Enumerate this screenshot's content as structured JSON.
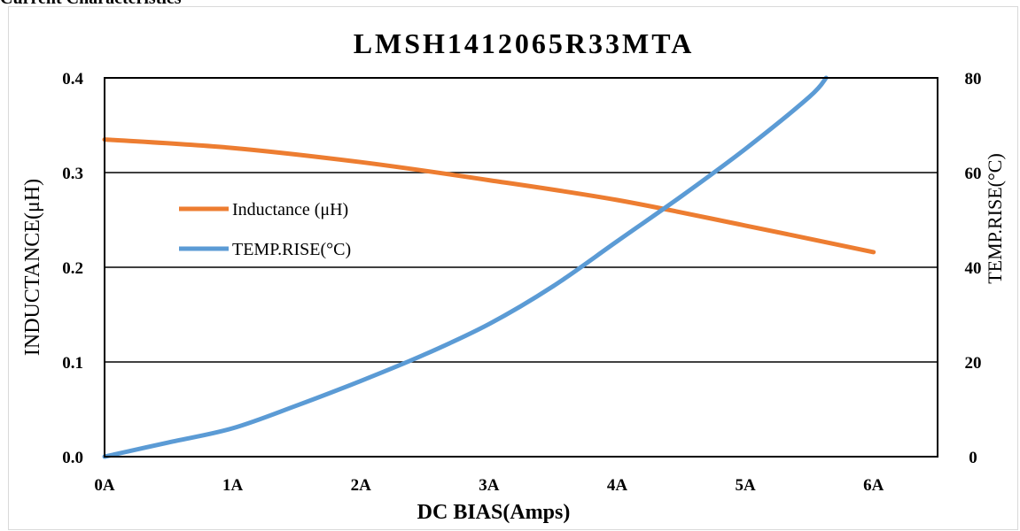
{
  "page_heading": "Current Characteristics",
  "chart_data": {
    "type": "line",
    "title": "LMSH1412065R33MTA",
    "xlabel": "DC BIAS(Amps)",
    "ylabel_left": "INDUCTANCE(μH)",
    "ylabel_right": "TEMP.RISE(°C)",
    "categories": [
      "0A",
      "1A",
      "2A",
      "3A",
      "4A",
      "5A",
      "6A"
    ],
    "x": [
      0,
      1,
      2,
      3,
      4,
      5,
      6
    ],
    "xlim": [
      0,
      6.5
    ],
    "ylim_left": [
      0,
      0.4
    ],
    "yticks_left": [
      "0.0",
      "0.1",
      "0.2",
      "0.3",
      "0.4"
    ],
    "ylim_right": [
      0,
      80
    ],
    "yticks_right": [
      "0",
      "20",
      "40",
      "60",
      "80"
    ],
    "grid": true,
    "legend_position": "left",
    "series": [
      {
        "name": "Inductance (μH)",
        "axis": "left",
        "color": "#ED7D31",
        "x": [
          0,
          1,
          2,
          3,
          4,
          5,
          6
        ],
        "values": [
          0.335,
          0.326,
          0.311,
          0.292,
          0.271,
          0.244,
          0.216
        ]
      },
      {
        "name": "TEMP.RISE(°C)",
        "axis": "right",
        "color": "#5B9BD5",
        "x": [
          0,
          0.5,
          1,
          1.5,
          2,
          2.5,
          3,
          3.5,
          4,
          4.5,
          5,
          5.5,
          5.63
        ],
        "values": [
          0,
          3,
          6,
          10.8,
          16,
          21.6,
          28,
          36,
          45.5,
          55,
          65,
          76,
          80
        ]
      }
    ]
  }
}
